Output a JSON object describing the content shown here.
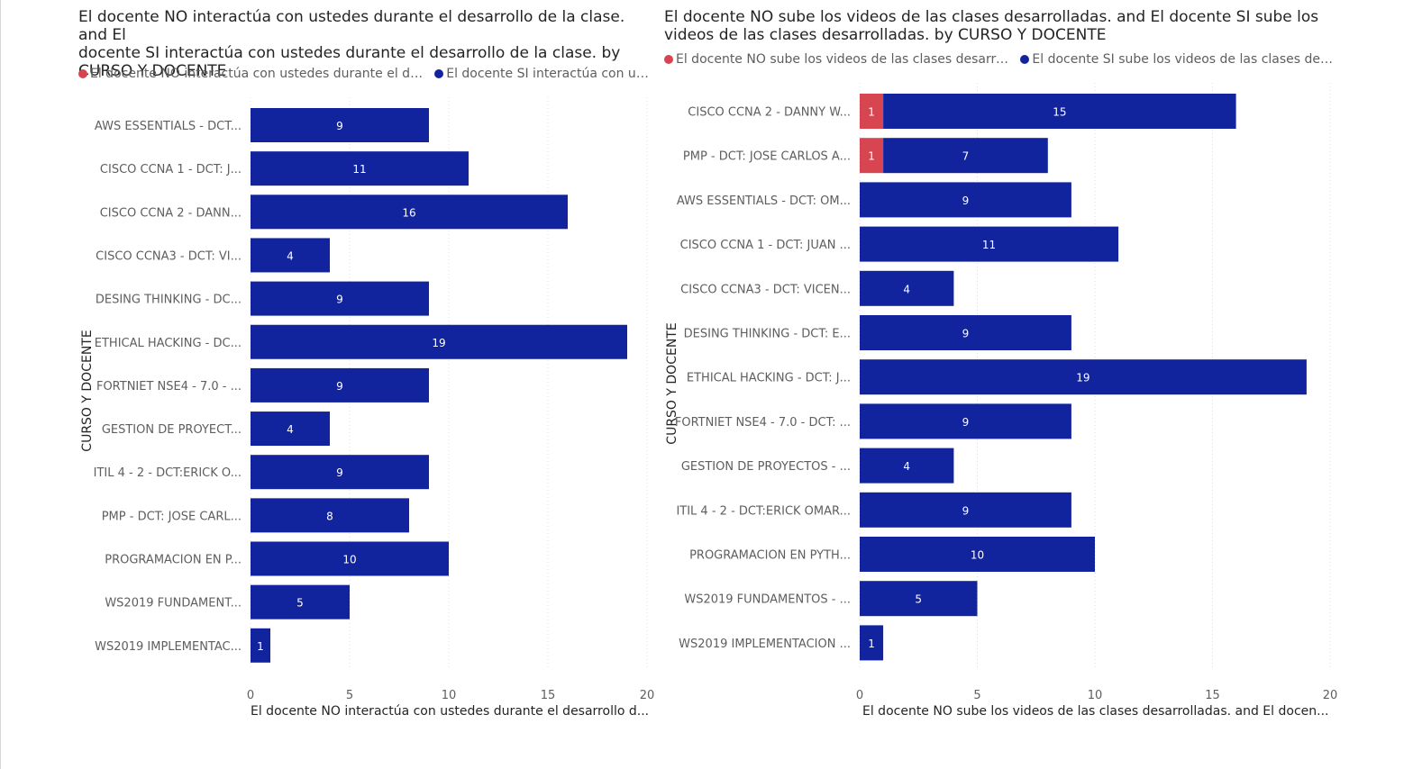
{
  "chart_data": [
    {
      "type": "bar",
      "orientation": "horizontal",
      "stacked": true,
      "title": "El docente NO interactúa con ustedes durante el desarrollo de la clase. and El docente SI interactúa con ustedes durante el desarrollo de la clase. by CURSO Y DOCENTE",
      "title_lines": [
        "El docente NO interactúa con ustedes durante el desarrollo de la clase. and El",
        "docente SI interactúa con ustedes durante el desarrollo de la clase. by",
        "CURSO Y DOCENTE"
      ],
      "legend": [
        {
          "label": "El docente NO interactúa con ustedes durante el desarr...",
          "color": "#d64550"
        },
        {
          "label": "El docente SI interactúa con uste...",
          "color": "#12239e"
        }
      ],
      "ylabel": "CURSO Y DOCENTE",
      "xlabel": "El docente NO interactúa con ustedes durante el desarrollo d...",
      "xlim": [
        0,
        20
      ],
      "xticks": [
        0,
        5,
        10,
        15,
        20
      ],
      "categories": [
        "AWS ESSENTIALS - DCT...",
        "CISCO CCNA 1 - DCT: J...",
        "CISCO CCNA 2 - DANN...",
        "CISCO CCNA3 - DCT: VI...",
        "DESING THINKING - DC...",
        "ETHICAL HACKING - DC...",
        "FORTNIET NSE4 - 7.0 - ...",
        "GESTION DE PROYECT...",
        "ITIL 4 - 2 - DCT:ERICK O...",
        "PMP - DCT: JOSE CARL...",
        "PROGRAMACION EN P...",
        "WS2019 FUNDAMENT...",
        "WS2019 IMPLEMENTAC..."
      ],
      "series": [
        {
          "name": "El docente NO interactúa con ustedes durante el desarrollo de la clase.",
          "color": "#d64550",
          "values": [
            0,
            0,
            0,
            0,
            0,
            0,
            0,
            0,
            0,
            0,
            0,
            0,
            0
          ]
        },
        {
          "name": "El docente SI interactúa con ustedes durante el desarrollo de la clase.",
          "color": "#12239e",
          "values": [
            9,
            11,
            16,
            4,
            9,
            19,
            9,
            4,
            9,
            8,
            10,
            5,
            1
          ]
        }
      ],
      "grid": true,
      "legend_position": "top-left"
    },
    {
      "type": "bar",
      "orientation": "horizontal",
      "stacked": true,
      "title": "El docente NO sube los videos de las clases desarrolladas. and El docente SI sube los videos de las clases desarrolladas. by CURSO Y DOCENTE",
      "title_lines": [
        "El docente NO sube los videos de las clases desarrolladas. and El docente SI sube los",
        "videos de las clases desarrolladas. by CURSO Y DOCENTE"
      ],
      "legend": [
        {
          "label": "El docente NO sube los videos de las clases desarrolladas.",
          "color": "#d64550"
        },
        {
          "label": "El docente SI sube los videos de las clases desarro...",
          "color": "#12239e"
        }
      ],
      "ylabel": "CURSO Y DOCENTE",
      "xlabel": "El docente NO sube los videos de las clases desarrolladas. and El docen...",
      "xlim": [
        0,
        20
      ],
      "xticks": [
        0,
        5,
        10,
        15,
        20
      ],
      "categories": [
        "CISCO CCNA 2 - DANNY W...",
        "PMP - DCT: JOSE CARLOS A...",
        "AWS ESSENTIALS - DCT: OM...",
        "CISCO CCNA 1 - DCT: JUAN ...",
        "CISCO CCNA3 - DCT: VICEN...",
        "DESING THINKING - DCT: E...",
        "ETHICAL HACKING - DCT: J...",
        "FORTNIET NSE4 - 7.0 - DCT: ...",
        "GESTION DE PROYECTOS - ...",
        "ITIL 4 - 2 - DCT:ERICK OMAR...",
        "PROGRAMACION EN PYTH...",
        "WS2019 FUNDAMENTOS - ...",
        "WS2019 IMPLEMENTACION ..."
      ],
      "series": [
        {
          "name": "El docente NO sube los videos de las clases desarrolladas.",
          "color": "#d64550",
          "values": [
            1,
            1,
            0,
            0,
            0,
            0,
            0,
            0,
            0,
            0,
            0,
            0,
            0
          ]
        },
        {
          "name": "El docente SI sube los videos de las clases desarrolladas.",
          "color": "#12239e",
          "values": [
            15,
            7,
            9,
            11,
            4,
            9,
            19,
            9,
            4,
            9,
            10,
            5,
            1
          ]
        }
      ],
      "grid": true,
      "legend_position": "top-left"
    }
  ]
}
